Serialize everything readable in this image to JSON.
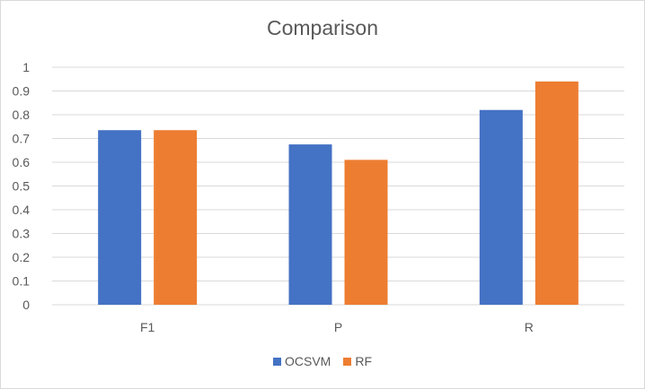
{
  "chart_data": {
    "type": "bar",
    "title": "Comparison",
    "categories": [
      "F1",
      "P",
      "R"
    ],
    "series": [
      {
        "name": "OCSVM",
        "values": [
          0.735,
          0.675,
          0.82
        ],
        "color": "#4472c4"
      },
      {
        "name": "RF",
        "values": [
          0.735,
          0.61,
          0.94
        ],
        "color": "#ed7d31"
      }
    ],
    "ylim": [
      0,
      1
    ],
    "yticks": [
      "0",
      "0.1",
      "0.2",
      "0.3",
      "0.4",
      "0.5",
      "0.6",
      "0.7",
      "0.8",
      "0.9",
      "1"
    ],
    "grid": true,
    "legend_position": "bottom"
  }
}
